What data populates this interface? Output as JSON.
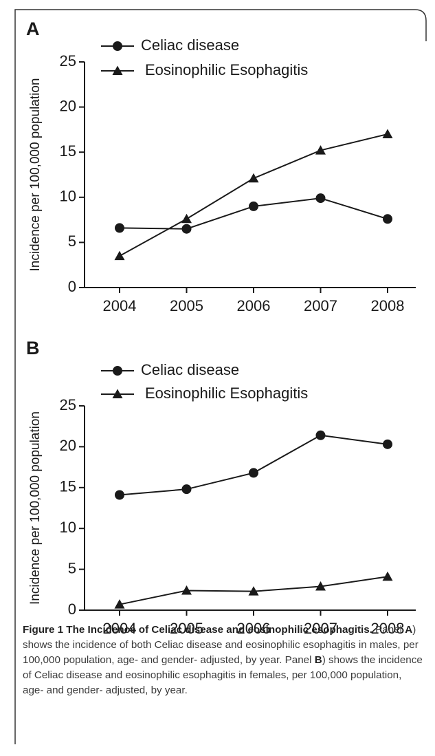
{
  "chart_data": [
    {
      "type": "line",
      "title": "A",
      "ylabel": "Incidence per 100,000 population",
      "categories": [
        "2004",
        "2005",
        "2006",
        "2007",
        "2008"
      ],
      "series": [
        {
          "name": "Celiac disease",
          "color": "#1a1a1a",
          "marker": "circle",
          "values": [
            6.6,
            6.5,
            9.0,
            9.9,
            7.6
          ]
        },
        {
          "name": "Eosinophilic Esophagitis",
          "color": "#1a1a1a",
          "marker": "triangle",
          "values": [
            3.5,
            7.6,
            12.1,
            15.2,
            17.0
          ]
        }
      ],
      "ylim": [
        0,
        25
      ],
      "yticks": [
        0,
        5,
        10,
        15,
        20,
        25
      ]
    },
    {
      "type": "line",
      "title": "B",
      "ylabel": "Incidence per 100,000 population",
      "categories": [
        "2004",
        "2005",
        "2006",
        "2007",
        "2008"
      ],
      "series": [
        {
          "name": "Celiac disease",
          "color": "#1a1a1a",
          "marker": "circle",
          "values": [
            14.1,
            14.8,
            16.8,
            21.4,
            20.3
          ]
        },
        {
          "name": "Eosinophilic Esophagitis",
          "color": "#1a1a1a",
          "marker": "triangle",
          "values": [
            0.7,
            2.4,
            2.3,
            2.9,
            4.1
          ]
        }
      ],
      "ylim": [
        0,
        25
      ],
      "yticks": [
        0,
        5,
        10,
        15,
        20,
        25
      ]
    }
  ],
  "caption": {
    "title": "Figure 1 The Incidence of Celiac disease and eosinophilic esophagitis.",
    "body": [
      "Panel",
      "A",
      ") shows the incidence of both Celiac disease and eosinophilic esophagitis in males, per 100,000 population, age- and gender- adjusted, by year. Panel",
      "B",
      ") shows the incidence of Celiac disease and eosinophilic esophagitis in females, per 100,000 population, age- and gender- adjusted, by year."
    ]
  }
}
